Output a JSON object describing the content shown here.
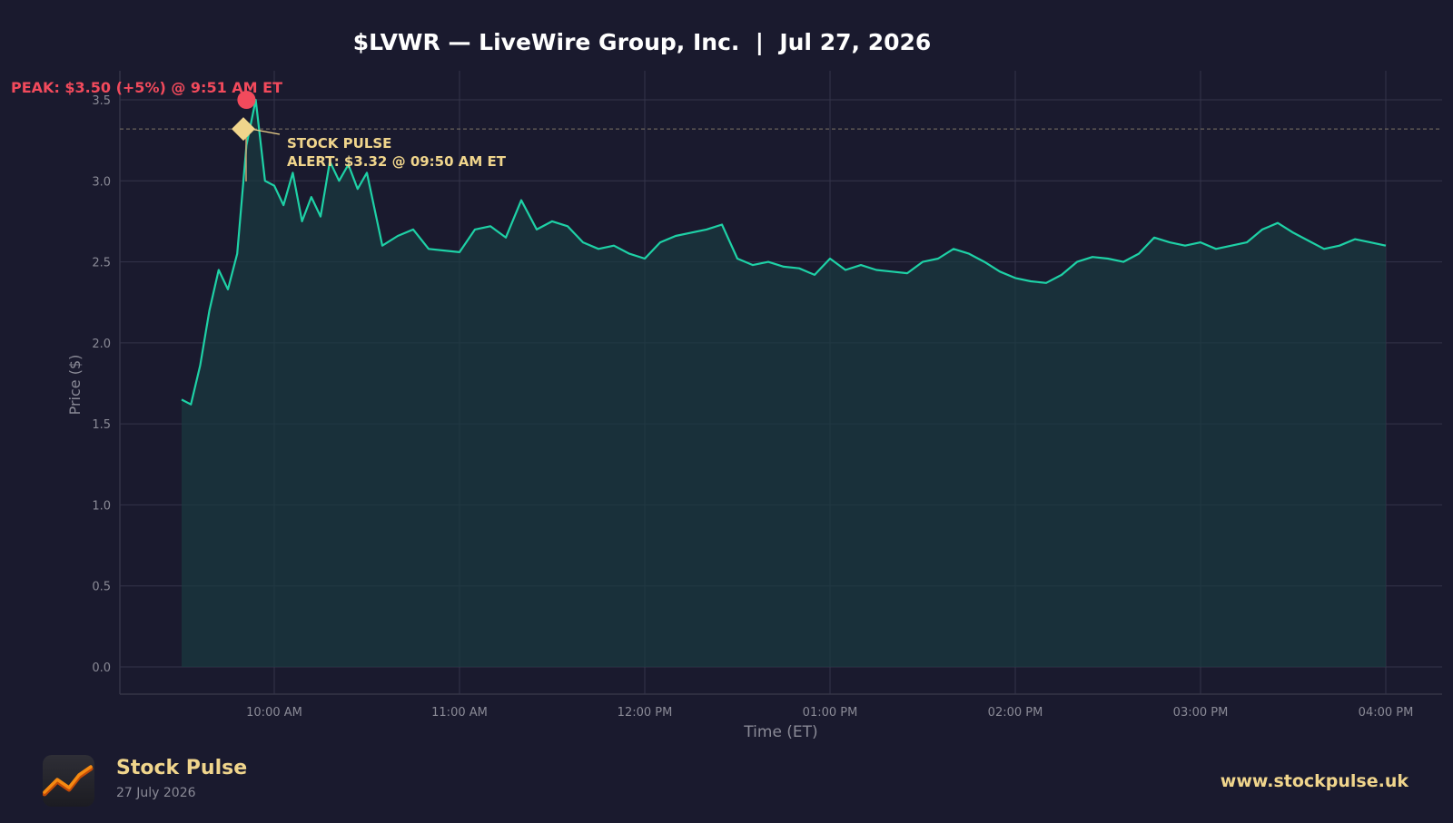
{
  "chart_data": {
    "type": "line",
    "title": "$LVWR — LiveWire Group, Inc.  |  Jul 27, 2026",
    "xlabel": "Time (ET)",
    "ylabel": "Price ($)",
    "ylim": [
      -0.17,
      3.67
    ],
    "y_ticks": [
      "0.0",
      "0.5",
      "1.0",
      "1.5",
      "2.0",
      "2.5",
      "3.0",
      "3.5"
    ],
    "x_ticks": [
      "10:00 AM",
      "11:00 AM",
      "12:00 PM",
      "01:00 PM",
      "02:00 PM",
      "03:00 PM",
      "04:00 PM"
    ],
    "grid": true,
    "series": [
      {
        "x_minutes_since_930": [
          0,
          3,
          6,
          9,
          12,
          15,
          18,
          21,
          24,
          27,
          30,
          33,
          36,
          39,
          42,
          45,
          48,
          51,
          54,
          57,
          60,
          65,
          70,
          75,
          80,
          85,
          90,
          95,
          100,
          105,
          110,
          115,
          120,
          125,
          130,
          135,
          140,
          145,
          150,
          155,
          160,
          165,
          170,
          175,
          180,
          185,
          190,
          195,
          200,
          205,
          210,
          215,
          220,
          225,
          230,
          235,
          240,
          245,
          250,
          255,
          260,
          265,
          270,
          275,
          280,
          285,
          290,
          295,
          300,
          305,
          310,
          315,
          320,
          325,
          330,
          335,
          340,
          345,
          350,
          355,
          360,
          365,
          370,
          375,
          380,
          385,
          390
        ],
        "values": [
          1.65,
          1.62,
          1.86,
          2.2,
          2.45,
          2.33,
          2.55,
          3.22,
          3.5,
          3.0,
          2.97,
          2.85,
          3.05,
          2.75,
          2.9,
          2.78,
          3.12,
          3.0,
          3.1,
          2.95,
          3.05,
          2.6,
          2.66,
          2.7,
          2.58,
          2.57,
          2.56,
          2.7,
          2.72,
          2.65,
          2.88,
          2.7,
          2.75,
          2.72,
          2.62,
          2.58,
          2.6,
          2.55,
          2.52,
          2.62,
          2.66,
          2.68,
          2.7,
          2.73,
          2.52,
          2.48,
          2.5,
          2.47,
          2.46,
          2.42,
          2.52,
          2.45,
          2.48,
          2.45,
          2.44,
          2.43,
          2.5,
          2.52,
          2.58,
          2.55,
          2.5,
          2.44,
          2.4,
          2.38,
          2.37,
          2.42,
          2.5,
          2.53,
          2.52,
          2.5,
          2.55,
          2.65,
          2.62,
          2.6,
          2.62,
          2.58,
          2.6,
          2.62,
          2.7,
          2.74,
          2.68,
          2.63,
          2.58,
          2.6,
          2.64,
          2.62,
          2.6
        ]
      }
    ],
    "annotations": {
      "peak": {
        "label": "PEAK: $3.50 (+5%) @ 9:51 AM ET",
        "value": 3.5,
        "time": "9:51 AM"
      },
      "alert": {
        "label_line1": "STOCK PULSE",
        "label_line2": "ALERT: $3.32 @ 09:50 AM ET",
        "value": 3.32,
        "time": "09:50 AM"
      }
    },
    "colors": {
      "line": "#1ed1a6",
      "peak": "#f24a5c",
      "alert": "#f0d58c",
      "background": "#1a1a2e"
    }
  },
  "footer": {
    "brand_name": "Stock Pulse",
    "brand_date": "27 July 2026",
    "url": "www.stockpulse.uk",
    "logo_icon": "chart-line-icon"
  }
}
